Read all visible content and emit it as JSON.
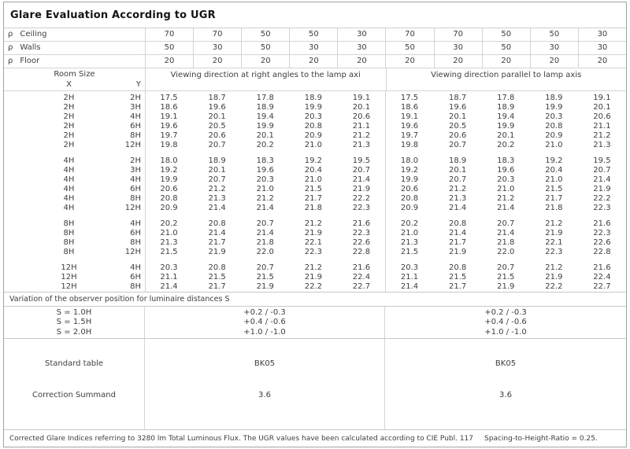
{
  "title": "Glare Evaluation According to UGR",
  "colors": {
    "outer_border": "#a3a3a3",
    "grid_line": "#d4d4d4",
    "text": "#3e3e3e",
    "title_text": "#141414"
  },
  "reflectance": {
    "rows": [
      {
        "symbol": "ρ",
        "label": "Ceiling",
        "values": [
          "70",
          "70",
          "50",
          "50",
          "30",
          "70",
          "70",
          "50",
          "50",
          "30"
        ]
      },
      {
        "symbol": "ρ",
        "label": "Walls",
        "values": [
          "50",
          "30",
          "50",
          "30",
          "30",
          "50",
          "30",
          "50",
          "30",
          "30"
        ]
      },
      {
        "symbol": "ρ",
        "label": "Floor",
        "values": [
          "20",
          "20",
          "20",
          "20",
          "20",
          "20",
          "20",
          "20",
          "20",
          "20"
        ]
      }
    ]
  },
  "header": {
    "room_size_label": "Room Size",
    "x_label": "X",
    "y_label": "Y",
    "left_section": "Viewing direction at right angles to the lamp axi",
    "right_section": "Viewing direction parallel to lamp axis"
  },
  "ugr_table": {
    "blocks": [
      {
        "rows": [
          {
            "x": "2H",
            "y": "2H",
            "left": [
              "17.5",
              "18.7",
              "17.8",
              "18.9",
              "19.1"
            ],
            "right": [
              "17.5",
              "18.7",
              "17.8",
              "18.9",
              "19.1"
            ]
          },
          {
            "x": "2H",
            "y": "3H",
            "left": [
              "18.6",
              "19.6",
              "18.9",
              "19.9",
              "20.1"
            ],
            "right": [
              "18.6",
              "19.6",
              "18.9",
              "19.9",
              "20.1"
            ]
          },
          {
            "x": "2H",
            "y": "4H",
            "left": [
              "19.1",
              "20.1",
              "19.4",
              "20.3",
              "20.6"
            ],
            "right": [
              "19.1",
              "20.1",
              "19.4",
              "20.3",
              "20.6"
            ]
          },
          {
            "x": "2H",
            "y": "6H",
            "left": [
              "19.6",
              "20.5",
              "19.9",
              "20.8",
              "21.1"
            ],
            "right": [
              "19.6",
              "20.5",
              "19.9",
              "20.8",
              "21.1"
            ]
          },
          {
            "x": "2H",
            "y": "8H",
            "left": [
              "19.7",
              "20.6",
              "20.1",
              "20.9",
              "21.2"
            ],
            "right": [
              "19.7",
              "20.6",
              "20.1",
              "20.9",
              "21.2"
            ]
          },
          {
            "x": "2H",
            "y": "12H",
            "left": [
              "19.8",
              "20.7",
              "20.2",
              "21.0",
              "21.3"
            ],
            "right": [
              "19.8",
              "20.7",
              "20.2",
              "21.0",
              "21.3"
            ]
          }
        ]
      },
      {
        "rows": [
          {
            "x": "4H",
            "y": "2H",
            "left": [
              "18.0",
              "18.9",
              "18.3",
              "19.2",
              "19.5"
            ],
            "right": [
              "18.0",
              "18.9",
              "18.3",
              "19.2",
              "19.5"
            ]
          },
          {
            "x": "4H",
            "y": "3H",
            "left": [
              "19.2",
              "20.1",
              "19.6",
              "20.4",
              "20.7"
            ],
            "right": [
              "19.2",
              "20.1",
              "19.6",
              "20.4",
              "20.7"
            ]
          },
          {
            "x": "4H",
            "y": "4H",
            "left": [
              "19.9",
              "20.7",
              "20.3",
              "21.0",
              "21.4"
            ],
            "right": [
              "19.9",
              "20.7",
              "20.3",
              "21.0",
              "21.4"
            ]
          },
          {
            "x": "4H",
            "y": "6H",
            "left": [
              "20.6",
              "21.2",
              "21.0",
              "21.5",
              "21.9"
            ],
            "right": [
              "20.6",
              "21.2",
              "21.0",
              "21.5",
              "21.9"
            ]
          },
          {
            "x": "4H",
            "y": "8H",
            "left": [
              "20.8",
              "21.3",
              "21.2",
              "21.7",
              "22.2"
            ],
            "right": [
              "20.8",
              "21.3",
              "21.2",
              "21.7",
              "22.2"
            ]
          },
          {
            "x": "4H",
            "y": "12H",
            "left": [
              "20.9",
              "21.4",
              "21.4",
              "21.8",
              "22.3"
            ],
            "right": [
              "20.9",
              "21.4",
              "21.4",
              "21.8",
              "22.3"
            ]
          }
        ]
      },
      {
        "rows": [
          {
            "x": "8H",
            "y": "4H",
            "left": [
              "20.2",
              "20.8",
              "20.7",
              "21.2",
              "21.6"
            ],
            "right": [
              "20.2",
              "20.8",
              "20.7",
              "21.2",
              "21.6"
            ]
          },
          {
            "x": "8H",
            "y": "6H",
            "left": [
              "21.0",
              "21.4",
              "21.4",
              "21.9",
              "22.3"
            ],
            "right": [
              "21.0",
              "21.4",
              "21.4",
              "21.9",
              "22.3"
            ]
          },
          {
            "x": "8H",
            "y": "8H",
            "left": [
              "21.3",
              "21.7",
              "21.8",
              "22.1",
              "22.6"
            ],
            "right": [
              "21.3",
              "21.7",
              "21.8",
              "22.1",
              "22.6"
            ]
          },
          {
            "x": "8H",
            "y": "12H",
            "left": [
              "21.5",
              "21.9",
              "22.0",
              "22.3",
              "22.8"
            ],
            "right": [
              "21.5",
              "21.9",
              "22.0",
              "22.3",
              "22.8"
            ]
          }
        ]
      },
      {
        "rows": [
          {
            "x": "12H",
            "y": "4H",
            "left": [
              "20.3",
              "20.8",
              "20.7",
              "21.2",
              "21.6"
            ],
            "right": [
              "20.3",
              "20.8",
              "20.7",
              "21.2",
              "21.6"
            ]
          },
          {
            "x": "12H",
            "y": "6H",
            "left": [
              "21.1",
              "21.5",
              "21.5",
              "21.9",
              "22.4"
            ],
            "right": [
              "21.1",
              "21.5",
              "21.5",
              "21.9",
              "22.4"
            ]
          },
          {
            "x": "12H",
            "y": "8H",
            "left": [
              "21.4",
              "21.7",
              "21.9",
              "22.2",
              "22.7"
            ],
            "right": [
              "21.4",
              "21.7",
              "21.9",
              "22.2",
              "22.7"
            ]
          }
        ]
      }
    ]
  },
  "variation": {
    "heading": "Variation of the observer position for luminaire distances S",
    "rows": [
      {
        "label": "S = 1.0H",
        "left": "+0.2 / -0.3",
        "right": "+0.2 / -0.3"
      },
      {
        "label": "S = 1.5H",
        "left": "+0.4 / -0.6",
        "right": "+0.4 / -0.6"
      },
      {
        "label": "S = 2.0H",
        "left": "+1.0 / -1.0",
        "right": "+1.0 / -1.0"
      }
    ]
  },
  "summary": {
    "rows": [
      {
        "label": "Standard table",
        "left": "BK05",
        "right": "BK05"
      },
      {
        "label": "Correction Summand",
        "left": "3.6",
        "right": "3.6"
      }
    ]
  },
  "footer": {
    "text": "Corrected Glare Indices referring to 3280 lm Total Luminous Flux. The UGR values have been calculated according to CIE Publ. 117",
    "ratio": "Spacing-to-Height-Ratio = 0.25."
  }
}
